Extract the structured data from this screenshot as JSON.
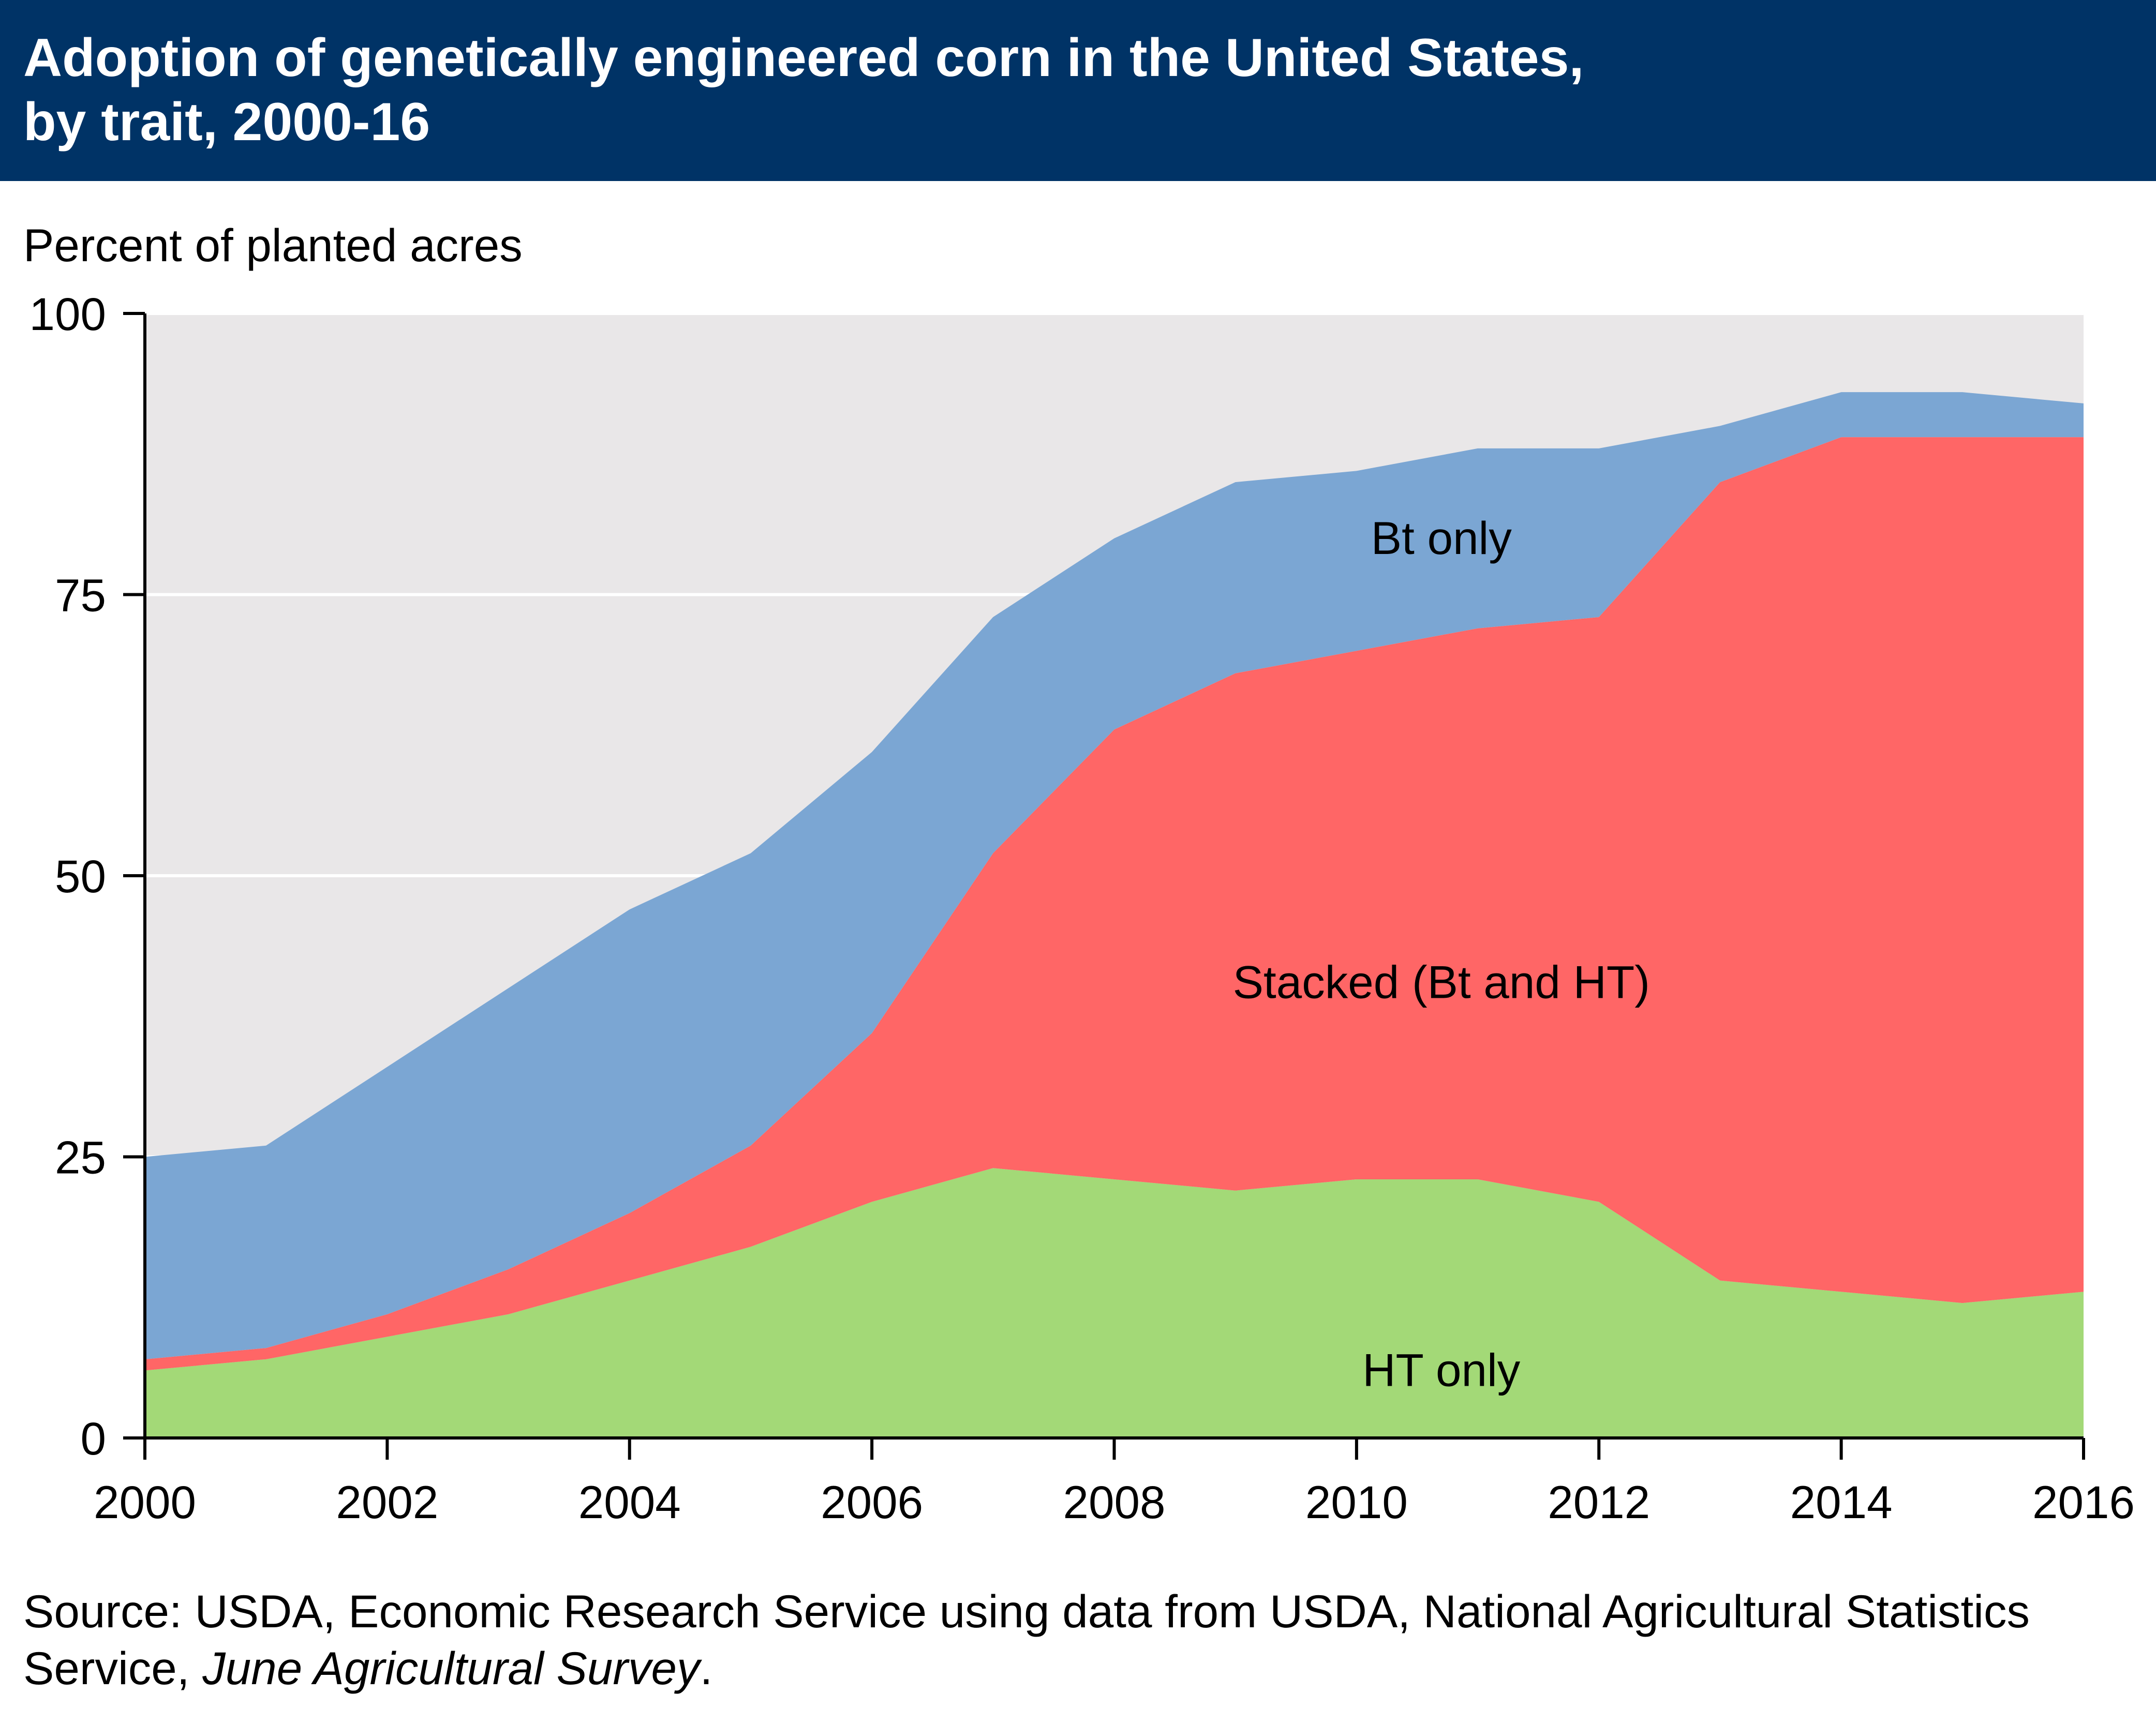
{
  "title": {
    "line1": "Adoption of genetically engineered corn in the United States,",
    "line2": "by trait, 2000-16"
  },
  "source": {
    "prefix": "Source: USDA, Economic Research Service using data from USDA, National Agricultural Statistics Service, ",
    "survey": "June Agricultural Survey",
    "suffix": "."
  },
  "chart_data": {
    "type": "area",
    "stacked": true,
    "ylabel": "Percent of planted acres",
    "xlabel": "",
    "ylim": [
      0,
      100
    ],
    "xlim": [
      2000,
      2016
    ],
    "yticks": [
      0,
      25,
      50,
      75,
      100
    ],
    "xticks": [
      2000,
      2002,
      2004,
      2006,
      2008,
      2010,
      2012,
      2014,
      2016
    ],
    "grid": true,
    "legend": "inline labels on areas",
    "x": [
      2000,
      2001,
      2002,
      2003,
      2004,
      2005,
      2006,
      2007,
      2008,
      2009,
      2010,
      2011,
      2012,
      2013,
      2014,
      2015,
      2016
    ],
    "series": [
      {
        "name": "HT only",
        "color": "#a3d977",
        "values": [
          6,
          7,
          9,
          11,
          14,
          17,
          21,
          24,
          23,
          22,
          23,
          23,
          21,
          14,
          13,
          12,
          13
        ]
      },
      {
        "name": "Stacked (Bt and HT)",
        "color": "#ff6666",
        "values": [
          1,
          1,
          2,
          4,
          6,
          9,
          15,
          28,
          40,
          46,
          47,
          49,
          52,
          71,
          76,
          77,
          76
        ]
      },
      {
        "name": "Bt only",
        "color": "#7ba6d3",
        "values": [
          18,
          18,
          22,
          25,
          27,
          26,
          25,
          21,
          17,
          17,
          16,
          16,
          15,
          5,
          4,
          4,
          3
        ]
      }
    ],
    "colors": {
      "plot_background": "#e9e7e8",
      "gridline": "#ffffff",
      "title_bar": "#003366"
    }
  }
}
